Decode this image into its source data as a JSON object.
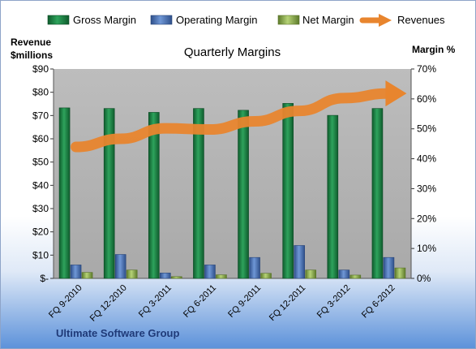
{
  "chart_data": {
    "type": "bar",
    "title": "Quarterly Margins",
    "source_label": "Ultimate Software Group",
    "categories": [
      "FQ 9-2010",
      "FQ 12-2010",
      "FQ 3-2011",
      "FQ 6-2011",
      "FQ 9-2011",
      "FQ 12-2011",
      "FQ 3-2012",
      "FQ 6-2012"
    ],
    "y_left": {
      "title_line1": "Revenue",
      "title_line2": "$millions",
      "ylim": [
        0,
        90
      ],
      "ticks": [
        0,
        10,
        20,
        30,
        40,
        50,
        60,
        70,
        80,
        90
      ],
      "tick_labels": [
        "$-",
        "$10",
        "$20",
        "$30",
        "$40",
        "$50",
        "$60",
        "$70",
        "$80",
        "$90"
      ]
    },
    "y_right": {
      "title": "Margin %",
      "ylim": [
        0,
        70
      ],
      "ticks": [
        0,
        10,
        20,
        30,
        40,
        50,
        60,
        70
      ],
      "tick_labels": [
        "0%",
        "10%",
        "20%",
        "30%",
        "40%",
        "50%",
        "60%",
        "70%"
      ]
    },
    "series": [
      {
        "name": "Gross Margin",
        "axis": "right",
        "kind": "bar",
        "color": "#1f8a4c",
        "values": [
          57.0,
          56.8,
          55.5,
          56.8,
          56.2,
          58.5,
          54.5,
          56.8
        ]
      },
      {
        "name": "Operating Margin",
        "axis": "right",
        "kind": "bar",
        "color": "#4f7cc0",
        "values": [
          4.5,
          8.0,
          1.8,
          4.5,
          7.0,
          11.0,
          2.8,
          7.0
        ]
      },
      {
        "name": "Net Margin",
        "axis": "right",
        "kind": "bar",
        "color": "#9bbb59",
        "values": [
          2.0,
          2.8,
          0.6,
          1.2,
          1.7,
          2.8,
          1.1,
          3.5
        ]
      },
      {
        "name": "Revenues",
        "axis": "left",
        "kind": "arrow-line",
        "color": "#e8852e",
        "values": [
          56.5,
          60,
          64.5,
          64,
          67.5,
          72,
          77.5,
          79.5
        ]
      }
    ],
    "legend_placement": "top",
    "grid": false
  }
}
